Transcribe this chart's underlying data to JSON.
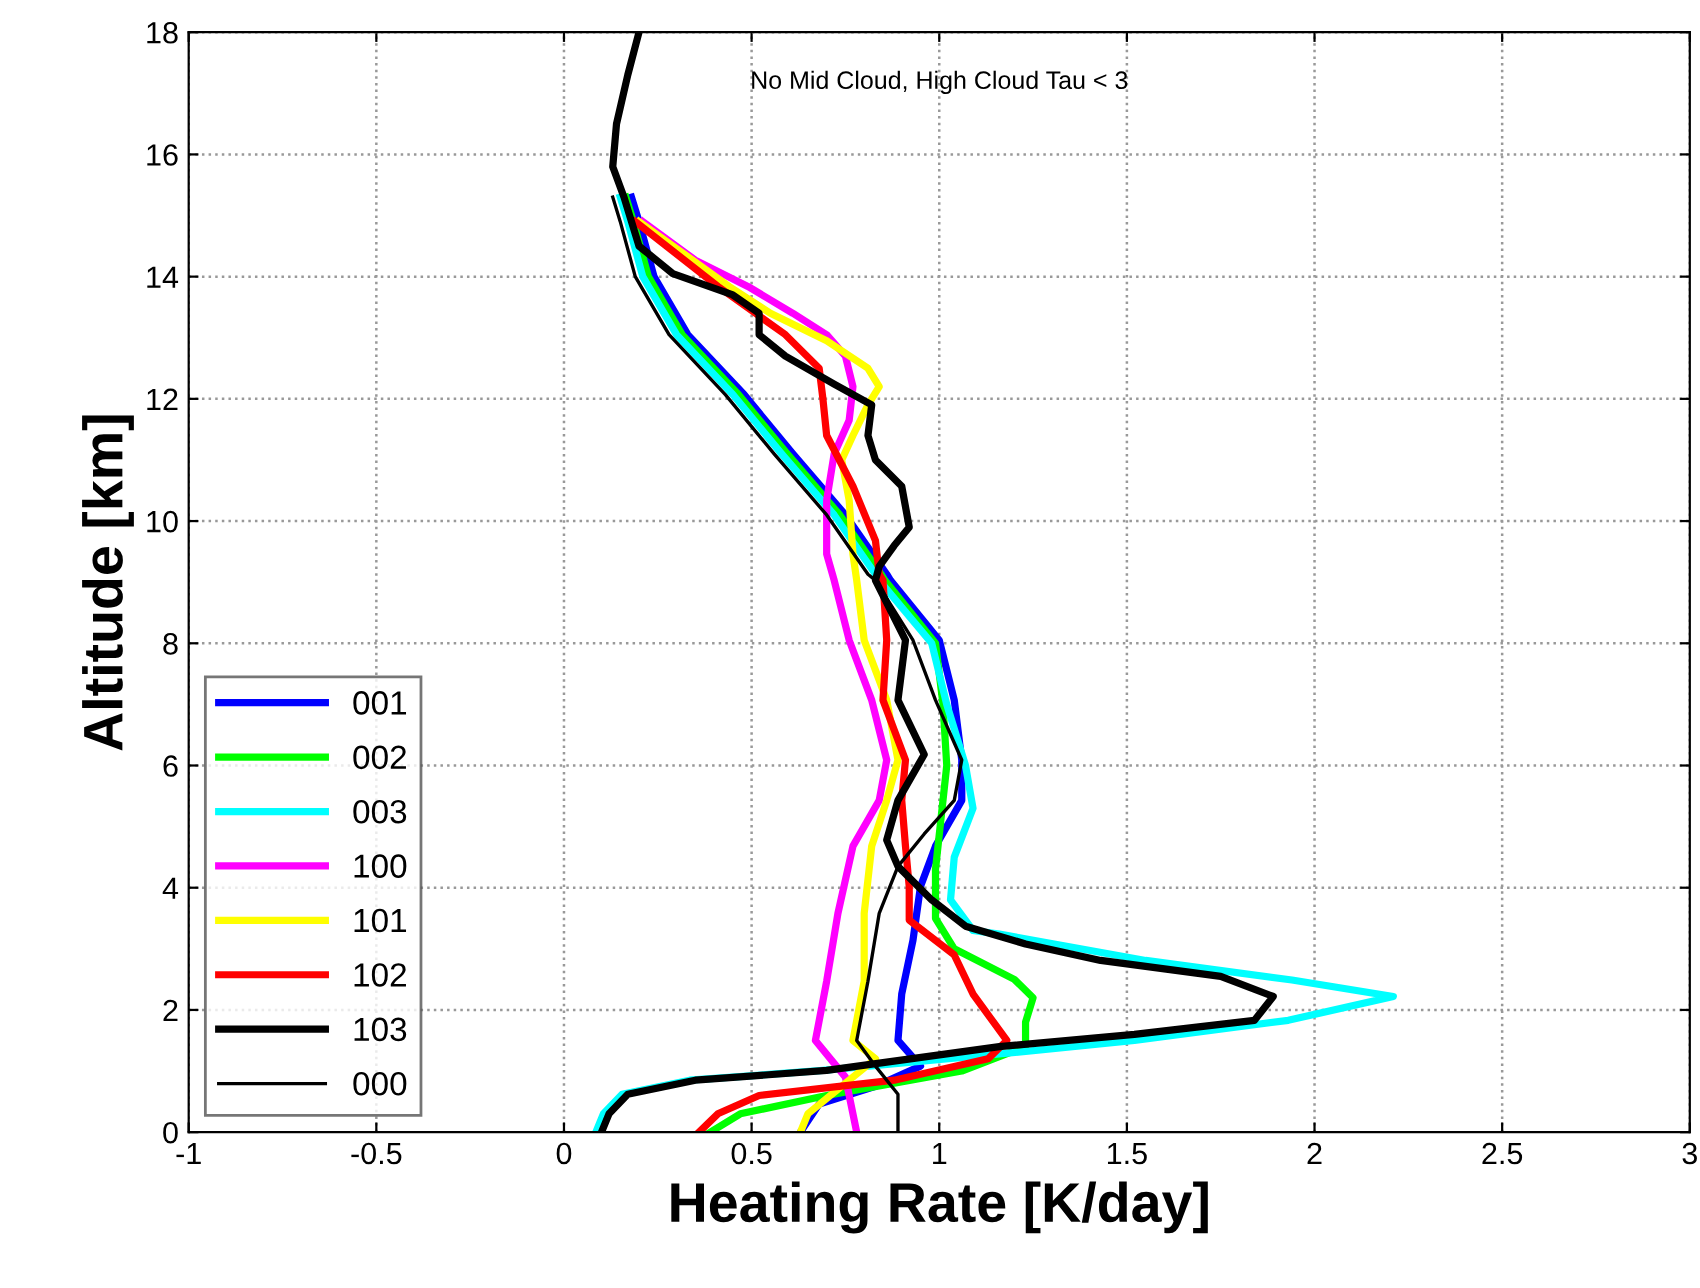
{
  "chart_data": {
    "type": "line",
    "xlabel": "Heating Rate [K/day]",
    "ylabel": "Altitude [km]",
    "annotations": [
      "No Mid Cloud, High Cloud Tau < 3"
    ],
    "xlim": [
      -1,
      3
    ],
    "xticks": [
      -1,
      -0.5,
      0,
      0.5,
      1,
      1.5,
      2,
      2.5,
      3
    ],
    "ylim": [
      0,
      18
    ],
    "yticks": [
      0,
      2,
      4,
      6,
      8,
      10,
      12,
      14,
      16,
      18
    ],
    "grid": true,
    "legend": "bottom left",
    "line_style": "solid",
    "marker": "none",
    "series": [
      {
        "name": "001",
        "color": "#0000ff",
        "x": [
          0.18,
          0.2,
          0.24,
          0.33,
          0.48,
          0.61,
          0.75,
          0.86,
          0.87,
          1.0,
          1.04,
          1.06,
          1.06,
          0.99,
          0.95,
          0.93,
          0.9,
          0.89,
          0.95,
          0.83,
          0.68,
          0.63
        ],
        "values": [
          15.3,
          14.9,
          14.0,
          13.05,
          12.07,
          11.1,
          10.1,
          9.13,
          9.03,
          8.05,
          7.07,
          6.09,
          5.43,
          4.68,
          4.02,
          3.14,
          2.26,
          1.5,
          1.08,
          0.75,
          0.46,
          0
        ]
      },
      {
        "name": "002",
        "color": "#00ff00",
        "x": [
          0.165,
          0.185,
          0.225,
          0.315,
          0.465,
          0.595,
          0.735,
          0.845,
          0.855,
          0.99,
          1.01,
          1.02,
          0.99,
          0.99,
          1.04,
          1.2,
          1.25,
          1.23,
          1.23,
          1.06,
          0.7,
          0.47,
          0.39
        ],
        "values": [
          15.3,
          14.9,
          14.0,
          13.05,
          12.07,
          11.1,
          10.1,
          9.13,
          9.03,
          8.0,
          7.0,
          6.0,
          4.3,
          3.5,
          3.0,
          2.5,
          2.2,
          1.8,
          1.4,
          1.0,
          0.6,
          0.3,
          0
        ]
      },
      {
        "name": "003",
        "color": "#00ffff",
        "x": [
          0.15,
          0.17,
          0.21,
          0.3,
          0.45,
          0.58,
          0.72,
          0.83,
          0.84,
          0.98,
          1.02,
          1.07,
          1.09,
          1.04,
          1.03,
          1.09,
          1.16,
          1.55,
          1.94,
          2.21,
          1.93,
          1.52,
          1.16,
          0.69,
          0.335,
          0.155,
          0.105,
          0.085
        ],
        "values": [
          15.3,
          14.9,
          14.0,
          13.05,
          12.07,
          11.1,
          10.1,
          9.13,
          9.03,
          8.0,
          7.0,
          6.0,
          5.3,
          4.5,
          3.8,
          3.3,
          3.24,
          2.81,
          2.49,
          2.22,
          1.83,
          1.5,
          1.28,
          1.01,
          0.85,
          0.62,
          0.3,
          0
        ]
      },
      {
        "name": "100",
        "color": "#ff00ff",
        "x": [
          0.21,
          0.35,
          0.49,
          0.61,
          0.7,
          0.75,
          0.77,
          0.76,
          0.72,
          0.7,
          0.7,
          0.72,
          0.76,
          0.82,
          0.86,
          0.84,
          0.77,
          0.73,
          0.7,
          0.67,
          0.75,
          0.78
        ],
        "values": [
          14.9,
          14.27,
          13.84,
          13.4,
          13.05,
          12.7,
          12.2,
          11.65,
          11.1,
          10.34,
          9.46,
          9.03,
          8.05,
          7.07,
          6.09,
          5.43,
          4.68,
          3.58,
          2.47,
          1.5,
          0.9,
          0
        ]
      },
      {
        "name": "101",
        "color": "#ffff00",
        "x": [
          0.2,
          0.44,
          0.55,
          0.7,
          0.81,
          0.84,
          0.81,
          0.77,
          0.74,
          0.76,
          0.77,
          0.78,
          0.8,
          0.86,
          0.89,
          0.86,
          0.82,
          0.8,
          0.8,
          0.77,
          0.83,
          0.74,
          0.65,
          0.63
        ],
        "values": [
          14.9,
          13.84,
          13.4,
          12.95,
          12.5,
          12.2,
          11.9,
          11.4,
          11.0,
          10.34,
          9.46,
          9.03,
          8.05,
          7.07,
          6.09,
          5.43,
          4.68,
          3.58,
          2.47,
          1.5,
          1.2,
          0.75,
          0.3,
          0
        ]
      },
      {
        "name": "102",
        "color": "#ff0000",
        "x": [
          0.19,
          0.41,
          0.59,
          0.68,
          0.69,
          0.7,
          0.77,
          0.83,
          0.84,
          0.85,
          0.86,
          0.85,
          0.91,
          0.9,
          0.91,
          0.92,
          0.92,
          1.04,
          1.09,
          1.18,
          1.13,
          0.88,
          0.52,
          0.41,
          0.36
        ],
        "values": [
          14.9,
          13.84,
          13.05,
          12.5,
          12.0,
          11.4,
          10.57,
          9.68,
          9.13,
          9.03,
          8.05,
          7.07,
          6.09,
          5.43,
          4.68,
          4.02,
          3.47,
          2.9,
          2.26,
          1.5,
          1.2,
          0.85,
          0.6,
          0.3,
          0
        ]
      },
      {
        "name": "103",
        "color": "#000000",
        "x": [
          0.2,
          0.17,
          0.14,
          0.13,
          0.16,
          0.2,
          0.29,
          0.45,
          0.52,
          0.52,
          0.59,
          0.72,
          0.82,
          0.81,
          0.83,
          0.9,
          0.92,
          0.88,
          0.84,
          0.83,
          0.91,
          0.89,
          0.96,
          0.89,
          0.86,
          0.89,
          0.98,
          1.07,
          1.23,
          1.43,
          1.75,
          1.89,
          1.84,
          1.52,
          1.16,
          0.7,
          0.35,
          0.17,
          0.12,
          0.1
        ],
        "values": [
          18,
          17.3,
          16.5,
          15.8,
          15.3,
          14.5,
          14.05,
          13.7,
          13.4,
          13.05,
          12.7,
          12.24,
          11.9,
          11.4,
          11.0,
          10.57,
          9.9,
          9.6,
          9.26,
          9.03,
          8.05,
          7.07,
          6.18,
          5.43,
          4.78,
          4.35,
          3.8,
          3.37,
          3.08,
          2.81,
          2.55,
          2.22,
          1.83,
          1.6,
          1.4,
          1.01,
          0.85,
          0.62,
          0.3,
          0
        ]
      },
      {
        "name": "000",
        "color": "#000000",
        "x": [
          0.13,
          0.15,
          0.19,
          0.28,
          0.43,
          0.56,
          0.7,
          0.81,
          0.83,
          0.93,
          0.99,
          1.06,
          1.04,
          0.96,
          0.89,
          0.84,
          0.81,
          0.78,
          0.83,
          0.89,
          0.89
        ],
        "values": [
          15.3,
          14.9,
          14.0,
          13.05,
          12.07,
          11.1,
          10.1,
          9.13,
          9.03,
          8.05,
          7.07,
          6.09,
          5.43,
          4.88,
          4.35,
          3.58,
          2.47,
          1.5,
          1.08,
          0.62,
          0
        ]
      }
    ]
  }
}
